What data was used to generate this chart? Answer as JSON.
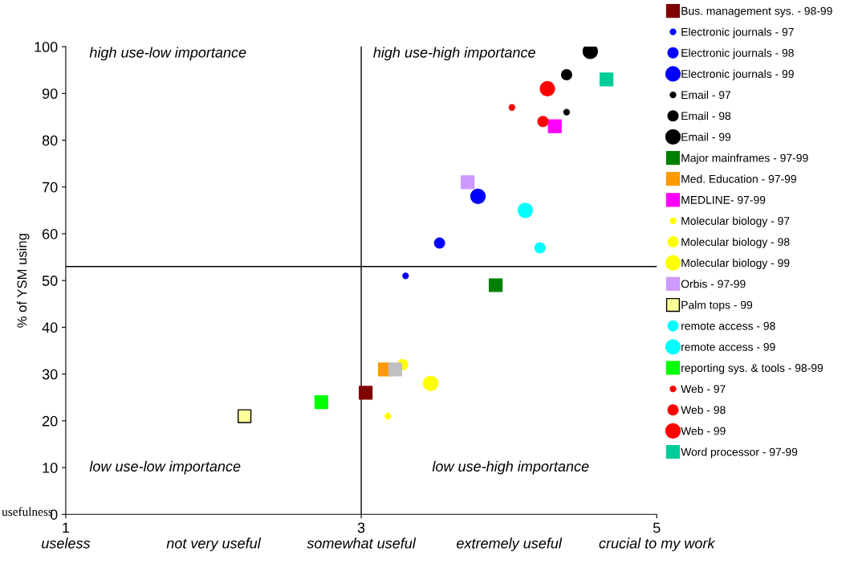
{
  "chart_data": {
    "type": "scatter",
    "ylabel": "% of YSM using",
    "xlim": [
      1,
      5
    ],
    "xticks": [
      1,
      3,
      5
    ],
    "ylim": [
      0,
      100
    ],
    "yticks": [
      0,
      10,
      20,
      30,
      40,
      50,
      60,
      70,
      80,
      90,
      100
    ],
    "grid": false,
    "legend": "right",
    "ref_lines": [
      {
        "axis": "x",
        "value": 3,
        "color": "#000000"
      },
      {
        "axis": "y",
        "value": 53,
        "color": "#000000"
      }
    ],
    "annotations": [
      "high use-low importance",
      "high use-high importance",
      "low use-low importance",
      "low use-high importance",
      "usefulness",
      "useless",
      "not very useful",
      "somewhat useful",
      "extremely useful",
      "crucial to my work"
    ],
    "series": [
      {
        "name": "Bus. management sys. - 98-99",
        "color": "#800000",
        "marker": "square",
        "x": [
          3.03
        ],
        "values": [
          26
        ],
        "sizes": [
          1
        ]
      },
      {
        "name": "Electronic journals - 97",
        "color": "#0000ff",
        "marker": "circle",
        "x": [
          3.3
        ],
        "values": [
          51
        ],
        "sizes": [
          0.15
        ]
      },
      {
        "name": "Electronic journals - 98",
        "color": "#0000ff",
        "marker": "circle",
        "x": [
          3.53
        ],
        "values": [
          58
        ],
        "sizes": [
          0.5
        ]
      },
      {
        "name": "Electronic journals - 99",
        "color": "#0000ff",
        "marker": "circle",
        "x": [
          3.79
        ],
        "values": [
          68
        ],
        "sizes": [
          1
        ]
      },
      {
        "name": "Email - 97",
        "color": "#000000",
        "marker": "circle",
        "x": [
          4.39
        ],
        "values": [
          86
        ],
        "sizes": [
          0.15
        ]
      },
      {
        "name": "Email - 98",
        "color": "#000000",
        "marker": "circle",
        "x": [
          4.39
        ],
        "values": [
          94
        ],
        "sizes": [
          0.5
        ]
      },
      {
        "name": "Email - 99",
        "color": "#000000",
        "marker": "circle",
        "x": [
          4.55
        ],
        "values": [
          99
        ],
        "sizes": [
          1
        ]
      },
      {
        "name": "Major mainframes - 97-99",
        "color": "#008000",
        "marker": "square",
        "x": [
          3.91
        ],
        "values": [
          49
        ],
        "sizes": [
          1
        ]
      },
      {
        "name": "Med. Education - 97-99",
        "color": "#ff9900",
        "marker": "square",
        "x": [
          3.16
        ],
        "values": [
          31
        ],
        "sizes": [
          1
        ]
      },
      {
        "name": "MEDLINE- 97-99",
        "color": "#ff00ff",
        "marker": "square",
        "x": [
          4.31
        ],
        "values": [
          83
        ],
        "sizes": [
          1
        ]
      },
      {
        "name": "Molecular biology - 97",
        "color": "#ffff00",
        "marker": "circle",
        "x": [
          3.18
        ],
        "values": [
          21
        ],
        "sizes": [
          0.15
        ]
      },
      {
        "name": "Molecular biology - 98",
        "color": "#ffff00",
        "marker": "circle",
        "x": [
          3.28
        ],
        "values": [
          32
        ],
        "sizes": [
          0.5
        ]
      },
      {
        "name": "Molecular biology - 99",
        "color": "#ffff00",
        "marker": "circle",
        "x": [
          3.47
        ],
        "values": [
          28
        ],
        "sizes": [
          1
        ]
      },
      {
        "name": "Orbis - 97-99",
        "color": "#cc99ff",
        "marker": "square",
        "x": [
          3.72
        ],
        "values": [
          71
        ],
        "sizes": [
          1
        ]
      },
      {
        "name": "Palm tops - 99",
        "color": "#ffff99",
        "marker": "square",
        "x": [
          2.21
        ],
        "values": [
          21
        ],
        "sizes": [
          1
        ]
      },
      {
        "name": "remote access - 98",
        "color": "#00ffff",
        "marker": "circle",
        "x": [
          4.21
        ],
        "values": [
          57
        ],
        "sizes": [
          0.5
        ]
      },
      {
        "name": "remote access - 99",
        "color": "#00ffff",
        "marker": "circle",
        "x": [
          4.11
        ],
        "values": [
          65
        ],
        "sizes": [
          1
        ]
      },
      {
        "name": "reporting sys. & tools - 98-99",
        "color": "#00ff00",
        "marker": "square",
        "x": [
          2.73
        ],
        "values": [
          24
        ],
        "sizes": [
          1
        ]
      },
      {
        "name": "Web - 97",
        "color": "#ff0000",
        "marker": "circle",
        "x": [
          4.02
        ],
        "values": [
          87
        ],
        "sizes": [
          0.15
        ]
      },
      {
        "name": "Web - 98",
        "color": "#ff0000",
        "marker": "circle",
        "x": [
          4.23
        ],
        "values": [
          84
        ],
        "sizes": [
          0.5
        ]
      },
      {
        "name": "Web - 99",
        "color": "#ff0000",
        "marker": "circle",
        "x": [
          4.26
        ],
        "values": [
          91
        ],
        "sizes": [
          1
        ]
      },
      {
        "color": "#c0c0c0",
        "marker": "square",
        "x": [
          3.23
        ],
        "values": [
          31
        ],
        "sizes": [
          1
        ]
      },
      {
        "name": "Word processor - 97-99",
        "color": "#00cc99",
        "marker": "square",
        "x": [
          4.66
        ],
        "values": [
          93
        ],
        "sizes": [
          1
        ]
      }
    ]
  }
}
